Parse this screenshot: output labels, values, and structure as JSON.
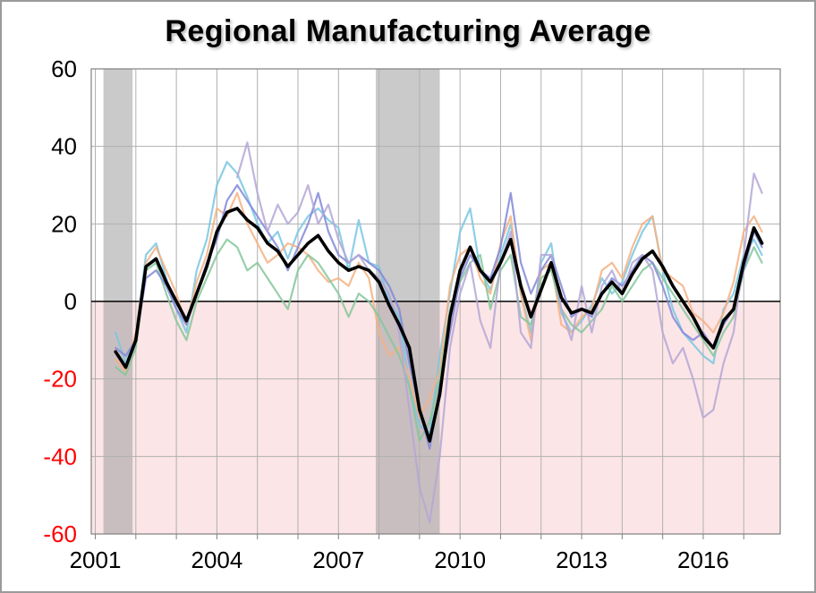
{
  "chart_data": {
    "type": "line",
    "title": "Regional Manufacturing Average",
    "x_range": [
      2000.9,
      2017.9
    ],
    "ylim": [
      -60,
      60
    ],
    "y_ticks": [
      60,
      40,
      20,
      0,
      -20,
      -40,
      -60
    ],
    "y_tick_labels": [
      "60",
      "40",
      "20",
      "0",
      "-20",
      "-40",
      "-60"
    ],
    "x_ticks": [
      2001,
      2004,
      2007,
      2010,
      2013,
      2016
    ],
    "x_tick_labels": [
      "2001",
      "2004",
      "2007",
      "2010",
      "2013",
      "2016"
    ],
    "grid": true,
    "legend": "none",
    "recession_bands": [
      [
        2001.2,
        2001.92
      ],
      [
        2007.92,
        2009.5
      ]
    ],
    "colors": {
      "negative_fill": "#fce5e6",
      "recession_band": "#9e9e9e",
      "gridline": "#b0b0b0",
      "axis": "#808080",
      "zero_line": "#000000",
      "negative_tick": "#ff0000",
      "positive_tick": "#000000",
      "x_tick_text": "#000000"
    },
    "x": [
      2001.5,
      2001.75,
      2002,
      2002.25,
      2002.5,
      2002.75,
      2003,
      2003.25,
      2003.5,
      2003.75,
      2004,
      2004.25,
      2004.5,
      2004.75,
      2005,
      2005.25,
      2005.5,
      2005.75,
      2006,
      2006.25,
      2006.5,
      2006.75,
      2007,
      2007.25,
      2007.5,
      2007.75,
      2008,
      2008.25,
      2008.5,
      2008.75,
      2009,
      2009.25,
      2009.5,
      2009.75,
      2010,
      2010.25,
      2010.5,
      2010.75,
      2011,
      2011.25,
      2011.5,
      2011.75,
      2012,
      2012.25,
      2012.5,
      2012.75,
      2013,
      2013.25,
      2013.5,
      2013.75,
      2014,
      2014.25,
      2014.5,
      2014.75,
      2015,
      2015.25,
      2015.5,
      2015.75,
      2016,
      2016.25,
      2016.5,
      2016.75,
      2017,
      2017.25,
      2017.45
    ],
    "series": [
      {
        "name": "regional-1-light-blue",
        "color": "#79c7e3",
        "width": 2.2,
        "values": [
          -8,
          -16,
          -9,
          12,
          15,
          6,
          -2,
          -8,
          8,
          16,
          30,
          36,
          33,
          27,
          20,
          15,
          18,
          11,
          18,
          22,
          24,
          21,
          19,
          8,
          21,
          10,
          9,
          0,
          -4,
          -22,
          -32,
          -34,
          -14,
          2,
          18,
          24,
          8,
          3,
          12,
          20,
          2,
          -8,
          10,
          15,
          -3,
          -8,
          -5,
          -1,
          6,
          2,
          5,
          12,
          18,
          22,
          8,
          -2,
          -8,
          -11,
          -14,
          -16,
          -2,
          2,
          12,
          16,
          12
        ]
      },
      {
        "name": "regional-2-orange",
        "color": "#f4b183",
        "width": 2.2,
        "values": [
          -15,
          -18,
          -8,
          10,
          14,
          8,
          2,
          -6,
          5,
          12,
          24,
          22,
          28,
          20,
          15,
          10,
          12,
          15,
          14,
          12,
          8,
          5,
          6,
          4,
          10,
          6,
          -8,
          -14,
          -12,
          -20,
          -30,
          -25,
          -18,
          4,
          12,
          14,
          6,
          2,
          15,
          22,
          2,
          -10,
          8,
          10,
          -6,
          -8,
          -4,
          -2,
          8,
          10,
          6,
          14,
          20,
          22,
          8,
          6,
          4,
          -3,
          -5,
          -8,
          -3,
          5,
          18,
          22,
          18
        ]
      },
      {
        "name": "regional-3-green",
        "color": "#85c79b",
        "width": 2.2,
        "values": [
          -17,
          -19,
          -12,
          8,
          10,
          2,
          -5,
          -10,
          0,
          6,
          12,
          16,
          14,
          8,
          10,
          6,
          2,
          -2,
          8,
          12,
          10,
          6,
          2,
          -4,
          2,
          0,
          -4,
          -9,
          -14,
          -22,
          -36,
          -31,
          -20,
          -2,
          5,
          10,
          12,
          -2,
          8,
          12,
          -4,
          -6,
          6,
          8,
          -2,
          -6,
          -8,
          -5,
          -2,
          4,
          0,
          4,
          8,
          10,
          6,
          2,
          -2,
          -6,
          -10,
          -14,
          -8,
          -4,
          8,
          14,
          10
        ]
      },
      {
        "name": "regional-4-periwinkle",
        "color": "#8288d8",
        "width": 2.2,
        "values": [
          -12,
          -14,
          -10,
          6,
          8,
          4,
          -2,
          -6,
          2,
          10,
          16,
          26,
          30,
          26,
          22,
          18,
          14,
          8,
          14,
          20,
          28,
          18,
          12,
          10,
          12,
          10,
          8,
          4,
          -2,
          -16,
          -28,
          -38,
          -22,
          -8,
          6,
          12,
          8,
          6,
          14,
          28,
          10,
          2,
          8,
          12,
          4,
          -4,
          -2,
          -4,
          2,
          6,
          4,
          8,
          12,
          10,
          4,
          -4,
          -8,
          -10,
          -8,
          -12,
          -6,
          -2,
          8,
          18,
          14
        ]
      },
      {
        "name": "regional-5-lavender",
        "color": "#b4a7d6",
        "width": 2.2,
        "values": [
          null,
          null,
          null,
          null,
          null,
          null,
          null,
          null,
          null,
          null,
          null,
          null,
          32,
          41,
          28,
          18,
          25,
          20,
          23,
          30,
          20,
          25,
          16,
          10,
          12,
          8,
          6,
          2,
          -8,
          -28,
          -48,
          -57,
          -40,
          -12,
          2,
          10,
          -5,
          -12,
          10,
          18,
          -8,
          -12,
          12,
          12,
          -2,
          -10,
          4,
          -8,
          4,
          8,
          2,
          10,
          12,
          8,
          -8,
          -16,
          -12,
          -20,
          -30,
          -28,
          -16,
          -8,
          12,
          33,
          28
        ]
      },
      {
        "name": "average-black",
        "color": "#000000",
        "width": 3.6,
        "values": [
          -13,
          -17,
          -10,
          9,
          11,
          5,
          0,
          -5,
          2,
          9,
          18,
          23,
          24,
          21,
          19,
          15,
          13,
          9,
          12,
          15,
          17,
          13,
          10,
          8,
          9,
          8,
          5,
          -1,
          -6,
          -12,
          -28,
          -36,
          -24,
          -4,
          8,
          14,
          8,
          5,
          10,
          16,
          4,
          -4,
          3,
          10,
          1,
          -3,
          -2,
          -3,
          2,
          5,
          2,
          7,
          11,
          13,
          9,
          4,
          0,
          -4,
          -9,
          -12,
          -5,
          -2,
          10,
          19,
          15
        ]
      }
    ]
  }
}
